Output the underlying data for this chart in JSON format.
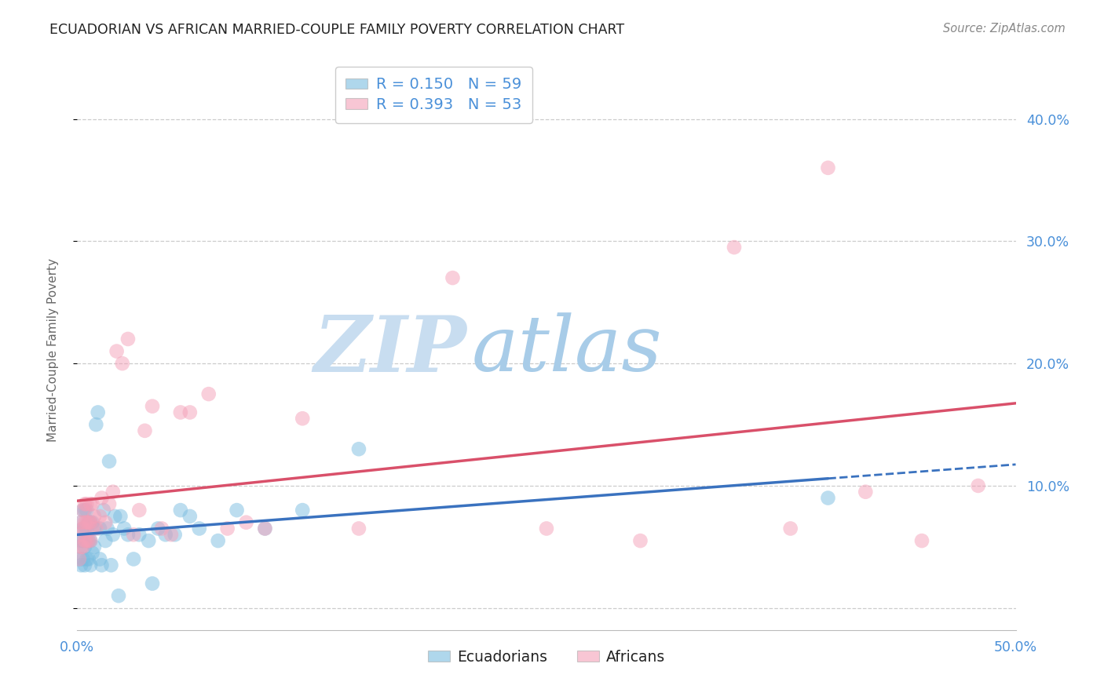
{
  "title": "ECUADORIAN VS AFRICAN MARRIED-COUPLE FAMILY POVERTY CORRELATION CHART",
  "source": "Source: ZipAtlas.com",
  "ylabel": "Married-Couple Family Poverty",
  "xlim": [
    0.0,
    0.5
  ],
  "ylim": [
    -0.018,
    0.44
  ],
  "yticks": [
    0.0,
    0.1,
    0.2,
    0.3,
    0.4
  ],
  "ytick_labels": [
    "",
    "10.0%",
    "20.0%",
    "30.0%",
    "40.0%"
  ],
  "xticks": [
    0.0,
    0.1,
    0.2,
    0.3,
    0.4,
    0.5
  ],
  "xtick_labels": [
    "0.0%",
    "",
    "",
    "",
    "",
    "50.0%"
  ],
  "legend_line1": "R = 0.150   N = 59",
  "legend_line2": "R = 0.393   N = 53",
  "legend_labels": [
    "Ecuadorians",
    "Africans"
  ],
  "ecuadorian_color": "#7bbde0",
  "african_color": "#f4a0b8",
  "ecuadorian_line_color": "#3a72bf",
  "african_line_color": "#d9506a",
  "watermark_zip": "ZIP",
  "watermark_atlas": "atlas",
  "background_color": "#ffffff",
  "grid_color": "#cccccc",
  "title_color": "#222222",
  "source_color": "#888888",
  "tick_color": "#4a90d9",
  "ecuadorian_x": [
    0.001,
    0.001,
    0.002,
    0.002,
    0.002,
    0.003,
    0.003,
    0.003,
    0.003,
    0.004,
    0.004,
    0.004,
    0.004,
    0.005,
    0.005,
    0.005,
    0.005,
    0.006,
    0.006,
    0.006,
    0.007,
    0.007,
    0.007,
    0.008,
    0.008,
    0.009,
    0.009,
    0.01,
    0.011,
    0.012,
    0.012,
    0.013,
    0.014,
    0.015,
    0.016,
    0.017,
    0.018,
    0.019,
    0.02,
    0.022,
    0.023,
    0.025,
    0.027,
    0.03,
    0.033,
    0.038,
    0.04,
    0.043,
    0.047,
    0.052,
    0.055,
    0.06,
    0.065,
    0.075,
    0.085,
    0.1,
    0.12,
    0.15,
    0.4
  ],
  "ecuadorian_y": [
    0.04,
    0.05,
    0.035,
    0.055,
    0.07,
    0.04,
    0.055,
    0.065,
    0.08,
    0.035,
    0.05,
    0.065,
    0.08,
    0.04,
    0.055,
    0.065,
    0.08,
    0.04,
    0.055,
    0.07,
    0.035,
    0.055,
    0.07,
    0.045,
    0.07,
    0.05,
    0.065,
    0.15,
    0.16,
    0.04,
    0.065,
    0.035,
    0.08,
    0.055,
    0.065,
    0.12,
    0.035,
    0.06,
    0.075,
    0.01,
    0.075,
    0.065,
    0.06,
    0.04,
    0.06,
    0.055,
    0.02,
    0.065,
    0.06,
    0.06,
    0.08,
    0.075,
    0.065,
    0.055,
    0.08,
    0.065,
    0.08,
    0.13,
    0.09
  ],
  "african_x": [
    0.001,
    0.001,
    0.002,
    0.002,
    0.003,
    0.003,
    0.003,
    0.004,
    0.004,
    0.004,
    0.005,
    0.005,
    0.005,
    0.006,
    0.006,
    0.007,
    0.007,
    0.007,
    0.008,
    0.008,
    0.009,
    0.01,
    0.012,
    0.013,
    0.015,
    0.017,
    0.019,
    0.021,
    0.024,
    0.027,
    0.03,
    0.033,
    0.036,
    0.04,
    0.045,
    0.05,
    0.055,
    0.06,
    0.07,
    0.08,
    0.09,
    0.1,
    0.12,
    0.15,
    0.2,
    0.25,
    0.3,
    0.35,
    0.38,
    0.4,
    0.42,
    0.45,
    0.48
  ],
  "african_y": [
    0.04,
    0.06,
    0.05,
    0.07,
    0.05,
    0.065,
    0.08,
    0.055,
    0.07,
    0.085,
    0.055,
    0.07,
    0.085,
    0.055,
    0.07,
    0.055,
    0.07,
    0.085,
    0.065,
    0.085,
    0.075,
    0.065,
    0.075,
    0.09,
    0.07,
    0.085,
    0.095,
    0.21,
    0.2,
    0.22,
    0.06,
    0.08,
    0.145,
    0.165,
    0.065,
    0.06,
    0.16,
    0.16,
    0.175,
    0.065,
    0.07,
    0.065,
    0.155,
    0.065,
    0.27,
    0.065,
    0.055,
    0.295,
    0.065,
    0.36,
    0.095,
    0.055,
    0.1
  ]
}
